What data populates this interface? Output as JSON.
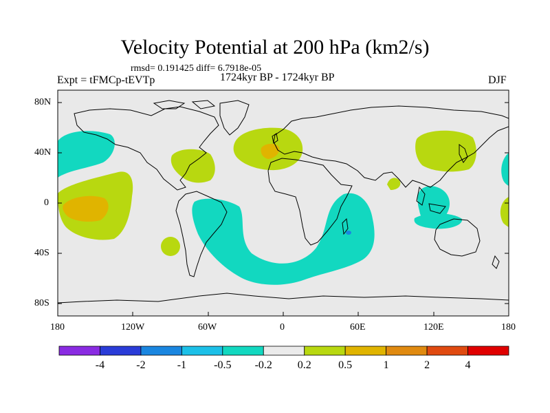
{
  "title": "Velocity Potential at 200 hPa (km2/s)",
  "stats": {
    "rmsd_label": "rmsd=",
    "rmsd_value": "0.191425",
    "diff_label": "diff=",
    "diff_value": "6.7918e-05"
  },
  "experiment": "Expt = tFMCp-tEVTp",
  "period": "1724kyr BP - 1724kyr BP",
  "season": "DJF",
  "axes": {
    "lat_labels": [
      "80N",
      "40N",
      "0",
      "40S",
      "80S"
    ],
    "lon_labels": [
      "180",
      "120W",
      "60W",
      "0",
      "60E",
      "120E",
      "180"
    ]
  },
  "colorbar": {
    "colors": [
      "#8a2be2",
      "#2a3cd8",
      "#1a86e0",
      "#1cc0e8",
      "#12d8c0",
      "#ebebeb",
      "#b8d810",
      "#e0b400",
      "#e08a10",
      "#e04a10",
      "#e00000"
    ],
    "labels": [
      "-4",
      "-2",
      "-1",
      "-0.5",
      "-0.2",
      "0.2",
      "0.5",
      "1",
      "2",
      "4"
    ]
  },
  "colors": {
    "background": "#e9e9e9",
    "land_outline": "#000000",
    "neg_02": "#12d8c0",
    "pos_02": "#b8d810",
    "pos_05": "#e0b400",
    "pos_1": "#e08a10",
    "neg_1": "#1a86e0"
  }
}
